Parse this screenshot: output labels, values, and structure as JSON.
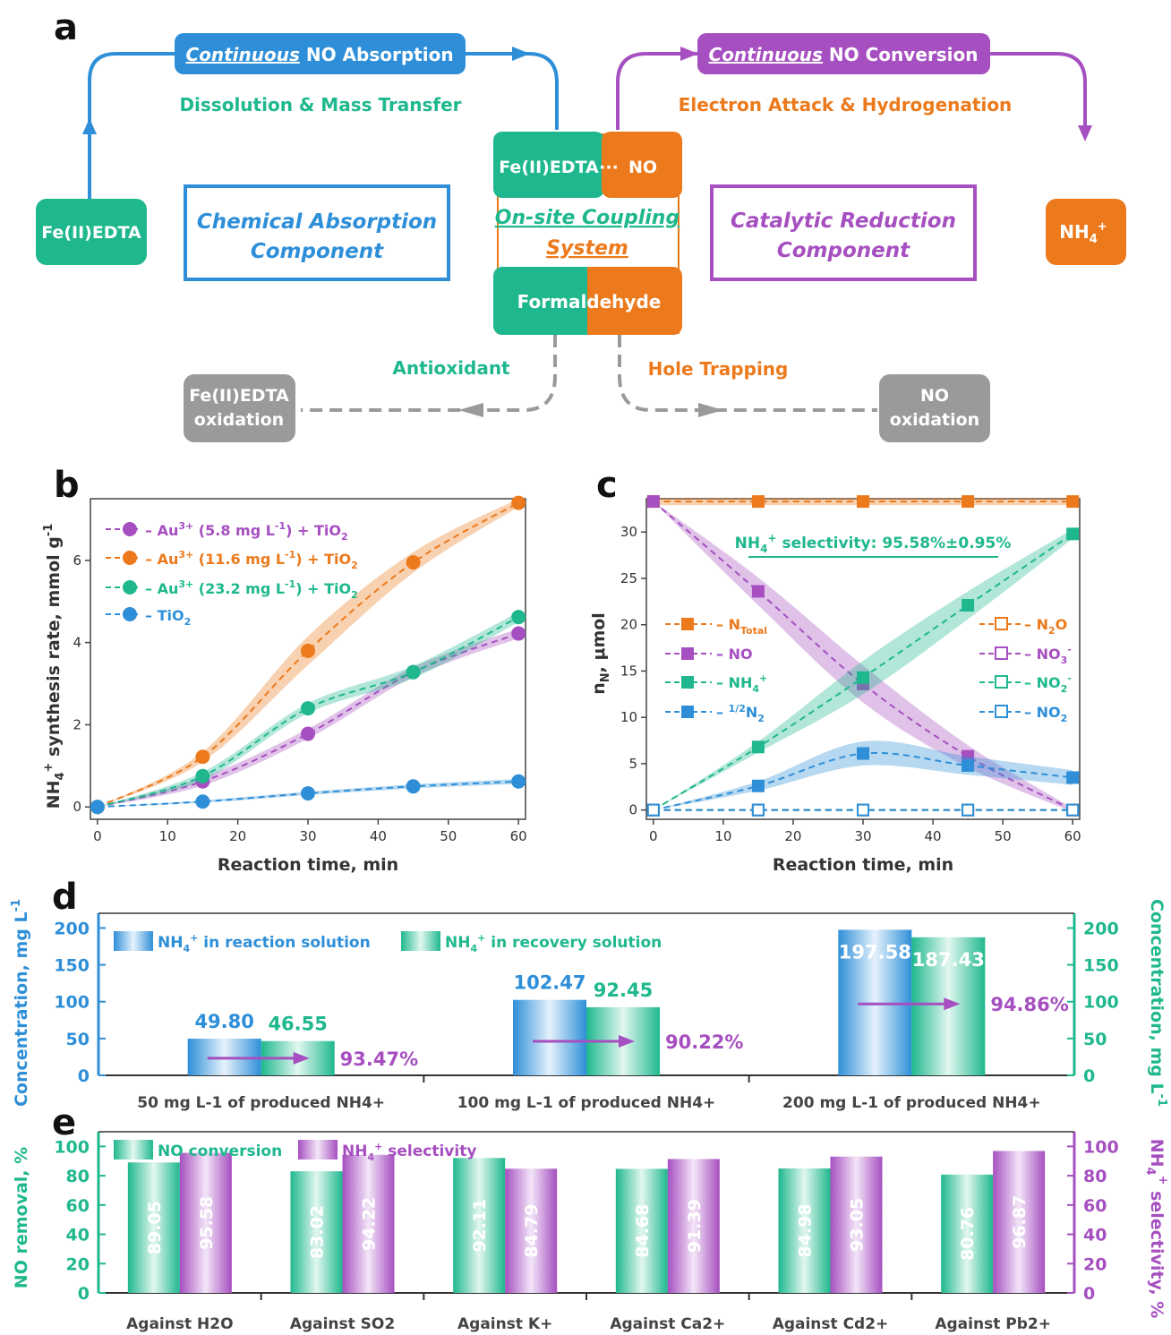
{
  "colors": {
    "teal": "#1FB88E",
    "orange": "#EC7A1C",
    "blue": "#2E8FD8",
    "purple": "#A64FC0",
    "gray": "#9A9A9A",
    "dark": "#333333"
  },
  "panel_a": {
    "label": "a",
    "top_left": {
      "italic": "Continuous",
      "rest": " NO Absorption"
    },
    "top_right": {
      "italic": "Continuous",
      "rest": " NO Conversion"
    },
    "sub_left": "Dissolution & Mass Transfer",
    "sub_right": "Electron Attack & Hydrogenation",
    "fe_box": "Fe(II)EDTA",
    "nh4_box": "NH4+",
    "chem_absorption": [
      "Chemical Absorption",
      "Component"
    ],
    "cat_reduction": [
      "Catalytic Reduction",
      "Component"
    ],
    "center_fe": "Fe(II)EDTA",
    "center_dots": "···",
    "center_no": "NO",
    "coupling": [
      "On-site Coupling",
      "System"
    ],
    "formaldehyde": "Formaldehyde",
    "antioxidant": "Antioxidant",
    "hole_trapping": "Hole Trapping",
    "fe_oxidation": [
      "Fe(II)EDTA",
      "oxidation"
    ],
    "no_oxidation": [
      "NO",
      "oxidation"
    ]
  },
  "chart_data": [
    {
      "panel": "b",
      "type": "line",
      "xlabel": "Reaction time, min",
      "ylabel": "NH4+ synthesis rate, mmol g-1",
      "x": [
        0,
        15,
        30,
        45,
        60
      ],
      "xlim": [
        -1,
        61
      ],
      "ylim": [
        -0.3,
        7.5
      ],
      "xticks": [
        0,
        10,
        20,
        30,
        40,
        50,
        60
      ],
      "yticks": [
        0,
        2,
        4,
        6
      ],
      "legend_position": "top-left",
      "series": [
        {
          "name": "Au3+ (5.8 mg L-1) + TiO2",
          "color": "#A64FC0",
          "values": [
            0,
            0.62,
            1.78,
            3.28,
            4.22
          ],
          "band": [
            0,
            0.1,
            0.12,
            0.12,
            0.12
          ]
        },
        {
          "name": "Au3+ (11.6 mg L-1) + TiO2",
          "color": "#EC7A1C",
          "values": [
            0,
            1.22,
            3.8,
            5.95,
            7.4
          ],
          "band": [
            0,
            0.12,
            0.35,
            0.25,
            0.1
          ]
        },
        {
          "name": "Au3+ (23.2 mg L-1) + TiO2",
          "color": "#1FB88E",
          "values": [
            0,
            0.75,
            2.4,
            3.28,
            4.62
          ],
          "band": [
            0,
            0.1,
            0.12,
            0.15,
            0.12
          ]
        },
        {
          "name": "TiO2",
          "color": "#2E8FD8",
          "values": [
            0,
            0.13,
            0.33,
            0.5,
            0.62
          ],
          "band": [
            0,
            0.03,
            0.04,
            0.05,
            0.06
          ]
        }
      ]
    },
    {
      "panel": "c",
      "type": "line",
      "xlabel": "Reaction time, min",
      "ylabel": "nN, μmol",
      "x": [
        0,
        15,
        30,
        45,
        60
      ],
      "xlim": [
        -1,
        61
      ],
      "ylim": [
        -1,
        33.6
      ],
      "xticks": [
        0,
        10,
        20,
        30,
        40,
        50,
        60
      ],
      "yticks": [
        0,
        5,
        10,
        15,
        20,
        25,
        30
      ],
      "annotation": "NH4+ selectivity: 95.58%±0.95%",
      "series": [
        {
          "name": "NTotal",
          "color": "#EC7A1C",
          "filled": true,
          "values": [
            33.3,
            33.3,
            33.3,
            33.3,
            33.3
          ],
          "band": [
            0.4,
            0.4,
            0.4,
            0.4,
            0.4
          ]
        },
        {
          "name": "NO",
          "color": "#A64FC0",
          "filled": true,
          "values": [
            33.3,
            23.6,
            13.6,
            5.8,
            0
          ],
          "band": [
            0,
            1.5,
            2.0,
            1.2,
            0.2
          ]
        },
        {
          "name": "NH4+",
          "color": "#1FB88E",
          "filled": true,
          "values": [
            0,
            6.8,
            14.3,
            22.1,
            29.8
          ],
          "band": [
            0,
            0.6,
            1.8,
            1.5,
            0.5
          ]
        },
        {
          "name": "1/2N2",
          "color": "#2E8FD8",
          "filled": true,
          "values": [
            0,
            2.6,
            6.1,
            4.8,
            3.5
          ],
          "band": [
            0,
            0.5,
            1.3,
            1.0,
            0.8
          ]
        },
        {
          "name": "N2O",
          "color": "#EC7A1C",
          "filled": false,
          "values": [
            0,
            0,
            0,
            0,
            0
          ]
        },
        {
          "name": "NO3-",
          "color": "#A64FC0",
          "filled": false,
          "values": [
            0,
            0,
            0,
            0,
            0
          ]
        },
        {
          "name": "NO2-",
          "color": "#1FB88E",
          "filled": false,
          "values": [
            0,
            0,
            0,
            0,
            0
          ]
        },
        {
          "name": "NO2",
          "color": "#2E8FD8",
          "filled": false,
          "values": [
            0,
            0,
            0,
            0,
            0
          ]
        }
      ]
    },
    {
      "panel": "d",
      "type": "bar",
      "ylabel_left": "Concentration, mg L-1",
      "ylabel_right": "Concentration, mg L-1",
      "ylim": [
        0,
        220
      ],
      "yticks": [
        0,
        50,
        100,
        150,
        200
      ],
      "categories": [
        "50 mg L-1 of produced NH4+",
        "100 mg L-1 of produced NH4+",
        "200 mg L-1 of produced NH4+"
      ],
      "series": [
        {
          "name": "NH4+ in reaction solution",
          "color": "#2E8FD8",
          "values": [
            49.8,
            102.47,
            197.58
          ],
          "labels": [
            "49.80",
            "102.47",
            "197.58"
          ]
        },
        {
          "name": "NH4+ in recovery solution",
          "color": "#1FB88E",
          "values": [
            46.55,
            92.45,
            187.43
          ],
          "labels": [
            "46.55",
            "92.45",
            "187.43"
          ]
        }
      ],
      "recovery_percent": [
        "93.47%",
        "90.22%",
        "94.86%"
      ]
    },
    {
      "panel": "e",
      "type": "bar",
      "ylabel_left": "NO removal, %",
      "ylabel_right": "NH4+ selectivity, %",
      "ylim": [
        0,
        110
      ],
      "yticks": [
        0,
        20,
        40,
        60,
        80,
        100
      ],
      "categories": [
        "Against H2O",
        "Against SO2",
        "Against K+",
        "Against Ca2+",
        "Against Cd2+",
        "Against Pb2+"
      ],
      "series": [
        {
          "name": "NO conversion",
          "color": "#1FB88E",
          "values": [
            89.05,
            83.02,
            92.11,
            84.68,
            84.98,
            80.76
          ],
          "labels": [
            "89.05",
            "83.02",
            "92.11",
            "84.68",
            "84.98",
            "80.76"
          ]
        },
        {
          "name": "NH4+ selectivity",
          "color": "#A64FC0",
          "values": [
            95.58,
            94.22,
            84.79,
            91.39,
            93.05,
            96.87
          ],
          "labels": [
            "95.58",
            "94.22",
            "84.79",
            "91.39",
            "93.05",
            "96.87"
          ]
        }
      ]
    }
  ]
}
